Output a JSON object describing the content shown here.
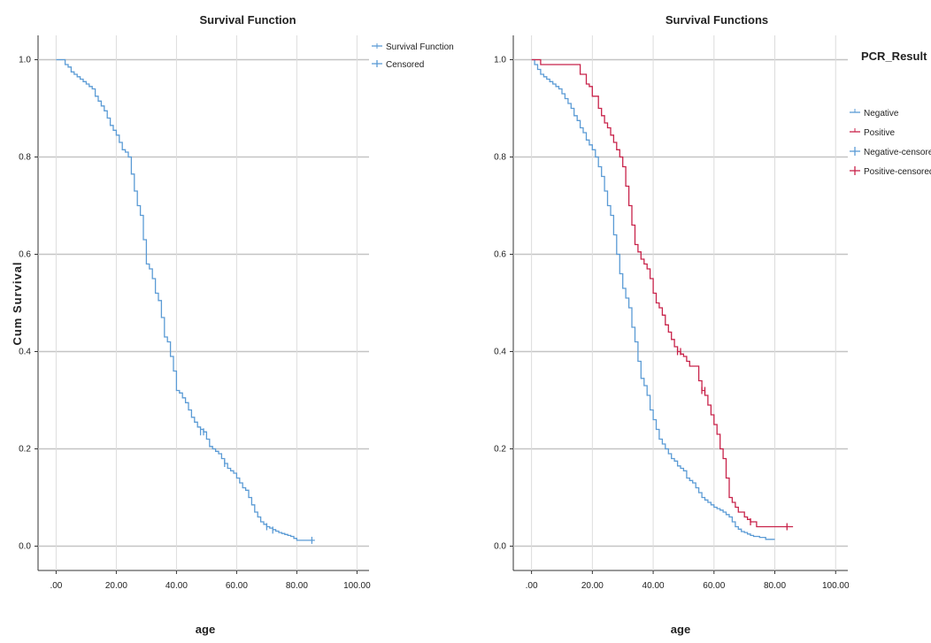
{
  "colors": {
    "negative": "#5b9bd5",
    "positive": "#c8234a",
    "grid": "#c4c4c4",
    "axis": "#333333"
  },
  "chart_data": [
    {
      "type": "line",
      "subtype": "kaplan-meier step",
      "title": "Survival Function",
      "xlabel": "age",
      "ylabel": "Cum Survival",
      "xlim": [
        -6,
        104
      ],
      "ylim": [
        -0.05,
        1.05
      ],
      "x_ticks": [
        0,
        20,
        40,
        60,
        80,
        100
      ],
      "x_tick_labels": [
        ".00",
        "20.00",
        "40.00",
        "60.00",
        "80.00",
        "100.00"
      ],
      "y_ticks": [
        0,
        0.2,
        0.4,
        0.6,
        0.8,
        1.0
      ],
      "y_tick_labels": [
        "0.0",
        "0.2",
        "0.4",
        "0.6",
        "0.8",
        "1.0"
      ],
      "grid": "horizontal",
      "legend_position": "right",
      "legend": [
        {
          "label": "Survival Function",
          "kind": "line",
          "color": "#5b9bd5"
        },
        {
          "label": "Censored",
          "kind": "censor",
          "color": "#5b9bd5"
        }
      ],
      "series": [
        {
          "color": "#5b9bd5",
          "points": [
            [
              0,
              1
            ],
            [
              2,
              1
            ],
            [
              3,
              0.99
            ],
            [
              4,
              0.985
            ],
            [
              5,
              0.975
            ],
            [
              6,
              0.97
            ],
            [
              7,
              0.965
            ],
            [
              8,
              0.96
            ],
            [
              9,
              0.955
            ],
            [
              10,
              0.95
            ],
            [
              11,
              0.945
            ],
            [
              12,
              0.94
            ],
            [
              13,
              0.925
            ],
            [
              14,
              0.915
            ],
            [
              15,
              0.905
            ],
            [
              16,
              0.895
            ],
            [
              17,
              0.88
            ],
            [
              18,
              0.865
            ],
            [
              19,
              0.855
            ],
            [
              20,
              0.845
            ],
            [
              21,
              0.83
            ],
            [
              22,
              0.815
            ],
            [
              23,
              0.81
            ],
            [
              24,
              0.8
            ],
            [
              25,
              0.765
            ],
            [
              26,
              0.73
            ],
            [
              27,
              0.7
            ],
            [
              28,
              0.68
            ],
            [
              29,
              0.63
            ],
            [
              30,
              0.58
            ],
            [
              31,
              0.57
            ],
            [
              32,
              0.55
            ],
            [
              33,
              0.52
            ],
            [
              34,
              0.505
            ],
            [
              35,
              0.47
            ],
            [
              36,
              0.43
            ],
            [
              37,
              0.42
            ],
            [
              38,
              0.39
            ],
            [
              39,
              0.36
            ],
            [
              40,
              0.32
            ],
            [
              41,
              0.315
            ],
            [
              42,
              0.305
            ],
            [
              43,
              0.295
            ],
            [
              44,
              0.28
            ],
            [
              45,
              0.265
            ],
            [
              46,
              0.255
            ],
            [
              47,
              0.245
            ],
            [
              48,
              0.24
            ],
            [
              49,
              0.235
            ],
            [
              50,
              0.22
            ],
            [
              51,
              0.205
            ],
            [
              52,
              0.2
            ],
            [
              53,
              0.195
            ],
            [
              54,
              0.19
            ],
            [
              55,
              0.18
            ],
            [
              56,
              0.17
            ],
            [
              57,
              0.16
            ],
            [
              58,
              0.155
            ],
            [
              59,
              0.15
            ],
            [
              60,
              0.14
            ],
            [
              61,
              0.13
            ],
            [
              62,
              0.12
            ],
            [
              63,
              0.115
            ],
            [
              64,
              0.1
            ],
            [
              65,
              0.085
            ],
            [
              66,
              0.07
            ],
            [
              67,
              0.06
            ],
            [
              68,
              0.05
            ],
            [
              69,
              0.045
            ],
            [
              70,
              0.04
            ],
            [
              71,
              0.037
            ],
            [
              72,
              0.034
            ],
            [
              73,
              0.031
            ],
            [
              74,
              0.028
            ],
            [
              75,
              0.026
            ],
            [
              76,
              0.024
            ],
            [
              77,
              0.022
            ],
            [
              78,
              0.02
            ],
            [
              79,
              0.016
            ],
            [
              80,
              0.012
            ],
            [
              86,
              0.012
            ]
          ],
          "censored": [
            [
              48,
              0.235
            ],
            [
              49,
              0.235
            ],
            [
              56,
              0.17
            ],
            [
              70,
              0.04
            ],
            [
              72,
              0.033
            ],
            [
              85,
              0.012
            ]
          ]
        }
      ]
    },
    {
      "type": "line",
      "subtype": "kaplan-meier step",
      "title": "Survival Functions",
      "xlabel": "age",
      "ylabel": "",
      "xlim": [
        -6,
        104
      ],
      "ylim": [
        -0.05,
        1.05
      ],
      "x_ticks": [
        0,
        20,
        40,
        60,
        80,
        100
      ],
      "x_tick_labels": [
        ".00",
        "20.00",
        "40.00",
        "60.00",
        "80.00",
        "100.00"
      ],
      "y_ticks": [
        0,
        0.2,
        0.4,
        0.6,
        0.8,
        1.0
      ],
      "y_tick_labels": [
        "0.0",
        "0.2",
        "0.4",
        "0.6",
        "0.8",
        "1.0"
      ],
      "grid": "horizontal",
      "legend_position": "right",
      "legend_title": "PCR_Result",
      "legend": [
        {
          "label": "Negative",
          "kind": "line",
          "color": "#5b9bd5"
        },
        {
          "label": "Positive",
          "kind": "line",
          "color": "#c8234a"
        },
        {
          "label": "Negative-censored",
          "kind": "censor",
          "color": "#5b9bd5"
        },
        {
          "label": "Positive-censored",
          "kind": "censor",
          "color": "#c8234a"
        }
      ],
      "series": [
        {
          "name": "Negative",
          "color": "#5b9bd5",
          "points": [
            [
              0,
              1
            ],
            [
              1,
              0.99
            ],
            [
              2,
              0.98
            ],
            [
              3,
              0.97
            ],
            [
              4,
              0.965
            ],
            [
              5,
              0.96
            ],
            [
              6,
              0.955
            ],
            [
              7,
              0.95
            ],
            [
              8,
              0.945
            ],
            [
              9,
              0.94
            ],
            [
              10,
              0.93
            ],
            [
              11,
              0.92
            ],
            [
              12,
              0.91
            ],
            [
              13,
              0.9
            ],
            [
              14,
              0.885
            ],
            [
              15,
              0.875
            ],
            [
              16,
              0.86
            ],
            [
              17,
              0.85
            ],
            [
              18,
              0.835
            ],
            [
              19,
              0.825
            ],
            [
              20,
              0.815
            ],
            [
              21,
              0.8
            ],
            [
              22,
              0.78
            ],
            [
              23,
              0.76
            ],
            [
              24,
              0.73
            ],
            [
              25,
              0.7
            ],
            [
              26,
              0.68
            ],
            [
              27,
              0.64
            ],
            [
              28,
              0.6
            ],
            [
              29,
              0.56
            ],
            [
              30,
              0.53
            ],
            [
              31,
              0.51
            ],
            [
              32,
              0.49
            ],
            [
              33,
              0.45
            ],
            [
              34,
              0.42
            ],
            [
              35,
              0.38
            ],
            [
              36,
              0.345
            ],
            [
              37,
              0.33
            ],
            [
              38,
              0.31
            ],
            [
              39,
              0.28
            ],
            [
              40,
              0.26
            ],
            [
              41,
              0.24
            ],
            [
              42,
              0.22
            ],
            [
              43,
              0.21
            ],
            [
              44,
              0.2
            ],
            [
              45,
              0.19
            ],
            [
              46,
              0.18
            ],
            [
              47,
              0.175
            ],
            [
              48,
              0.165
            ],
            [
              49,
              0.16
            ],
            [
              50,
              0.155
            ],
            [
              51,
              0.14
            ],
            [
              52,
              0.135
            ],
            [
              53,
              0.13
            ],
            [
              54,
              0.12
            ],
            [
              55,
              0.11
            ],
            [
              56,
              0.1
            ],
            [
              57,
              0.095
            ],
            [
              58,
              0.09
            ],
            [
              59,
              0.085
            ],
            [
              60,
              0.08
            ],
            [
              61,
              0.077
            ],
            [
              62,
              0.074
            ],
            [
              63,
              0.07
            ],
            [
              64,
              0.065
            ],
            [
              65,
              0.06
            ],
            [
              66,
              0.05
            ],
            [
              67,
              0.04
            ],
            [
              68,
              0.035
            ],
            [
              69,
              0.03
            ],
            [
              70,
              0.028
            ],
            [
              71,
              0.025
            ],
            [
              72,
              0.022
            ],
            [
              73,
              0.02
            ],
            [
              75,
              0.018
            ],
            [
              77,
              0.014
            ],
            [
              80,
              0.014
            ]
          ],
          "censored": []
        },
        {
          "name": "Positive",
          "color": "#c8234a",
          "points": [
            [
              0,
              1
            ],
            [
              3,
              0.99
            ],
            [
              14,
              0.99
            ],
            [
              16,
              0.97
            ],
            [
              18,
              0.95
            ],
            [
              19,
              0.945
            ],
            [
              20,
              0.925
            ],
            [
              22,
              0.9
            ],
            [
              23,
              0.885
            ],
            [
              24,
              0.87
            ],
            [
              25,
              0.86
            ],
            [
              26,
              0.845
            ],
            [
              27,
              0.83
            ],
            [
              28,
              0.815
            ],
            [
              29,
              0.8
            ],
            [
              30,
              0.78
            ],
            [
              31,
              0.74
            ],
            [
              32,
              0.7
            ],
            [
              33,
              0.66
            ],
            [
              34,
              0.62
            ],
            [
              35,
              0.605
            ],
            [
              36,
              0.59
            ],
            [
              37,
              0.58
            ],
            [
              38,
              0.57
            ],
            [
              39,
              0.55
            ],
            [
              40,
              0.52
            ],
            [
              41,
              0.5
            ],
            [
              42,
              0.49
            ],
            [
              43,
              0.475
            ],
            [
              44,
              0.455
            ],
            [
              45,
              0.44
            ],
            [
              46,
              0.425
            ],
            [
              47,
              0.41
            ],
            [
              48,
              0.4
            ],
            [
              49,
              0.395
            ],
            [
              50,
              0.39
            ],
            [
              51,
              0.38
            ],
            [
              52,
              0.37
            ],
            [
              55,
              0.34
            ],
            [
              56,
              0.32
            ],
            [
              57,
              0.31
            ],
            [
              58,
              0.29
            ],
            [
              59,
              0.27
            ],
            [
              60,
              0.25
            ],
            [
              61,
              0.23
            ],
            [
              62,
              0.2
            ],
            [
              63,
              0.18
            ],
            [
              64,
              0.14
            ],
            [
              65,
              0.1
            ],
            [
              66,
              0.09
            ],
            [
              67,
              0.08
            ],
            [
              68,
              0.07
            ],
            [
              70,
              0.06
            ],
            [
              71,
              0.055
            ],
            [
              72,
              0.05
            ],
            [
              74,
              0.04
            ],
            [
              86,
              0.04
            ]
          ],
          "censored": [
            [
              48,
              0.4
            ],
            [
              49,
              0.4
            ],
            [
              56,
              0.32
            ],
            [
              57,
              0.32
            ],
            [
              72,
              0.05
            ],
            [
              84,
              0.04
            ]
          ]
        }
      ]
    }
  ]
}
